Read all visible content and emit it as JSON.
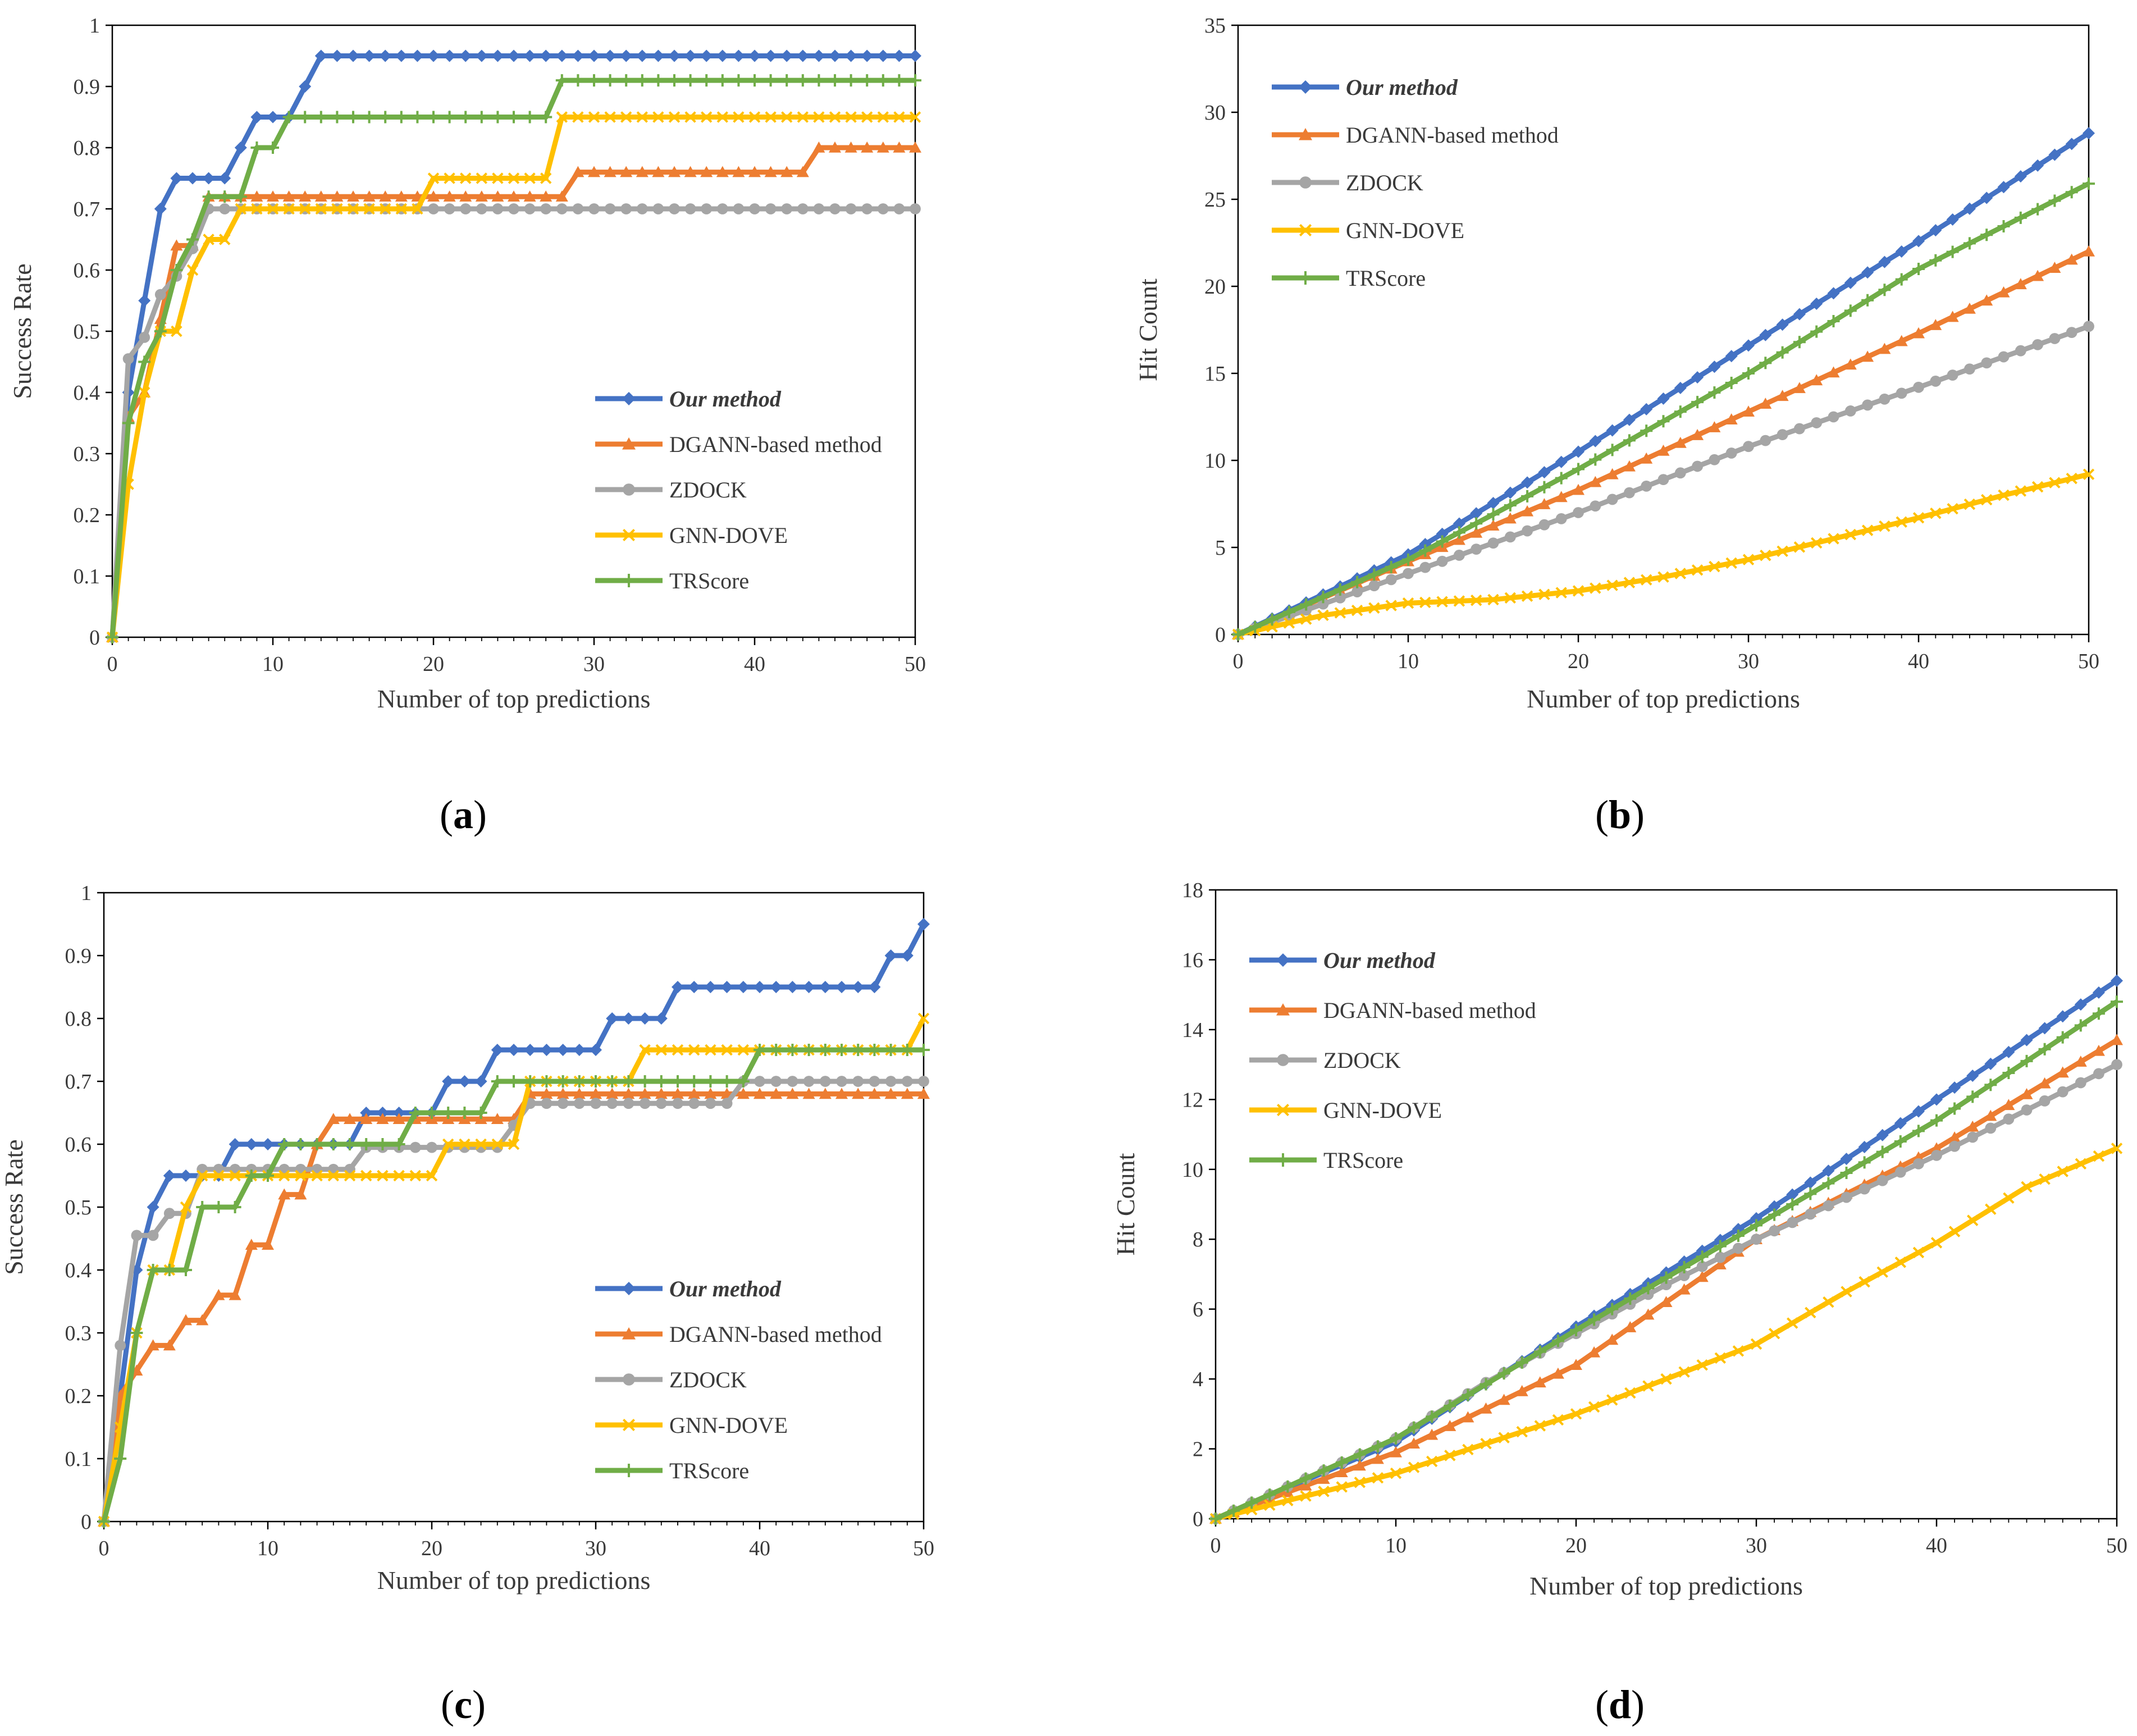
{
  "figure": {
    "captions": [
      "(a)",
      "(b)",
      "(c)",
      "(d)"
    ]
  },
  "series_styles": {
    "Our method": {
      "color": "#4472C4",
      "marker": "diamond"
    },
    "DGANN-based method": {
      "color": "#ED7D31",
      "marker": "triangle"
    },
    "ZDOCK": {
      "color": "#A5A5A5",
      "marker": "circle"
    },
    "GNN-DOVE": {
      "color": "#FFC000",
      "marker": "cross"
    },
    "TRScore": {
      "color": "#70AD47",
      "marker": "plus"
    }
  },
  "chart_data": [
    {
      "id": "a",
      "type": "line",
      "caption_letter": "a",
      "xlabel": "Number of top predictions",
      "ylabel": "Success Rate",
      "xlim": [
        0,
        50
      ],
      "ylim": [
        0,
        1
      ],
      "xticks": [
        0,
        10,
        20,
        30,
        40,
        50
      ],
      "yticks": [
        0,
        0.1,
        0.2,
        0.3,
        0.4,
        0.5,
        0.6,
        0.7,
        0.8,
        0.9,
        1
      ],
      "ytick_labels": [
        "0",
        "0.1",
        "0.2",
        "0.3",
        "0.4",
        "0.5",
        "0.6",
        "0.7",
        "0.8",
        "0.9",
        "1"
      ],
      "legend": [
        "Our method",
        "DGANN-based method",
        "ZDOCK",
        "GNN-DOVE",
        "TRScore"
      ],
      "series": [
        {
          "name": "Our method",
          "type": "step",
          "points": [
            [
              0,
              0
            ],
            [
              1,
              0.4
            ],
            [
              2,
              0.55
            ],
            [
              3,
              0.7
            ],
            [
              4,
              0.75
            ],
            [
              7,
              0.75
            ],
            [
              8,
              0.8
            ],
            [
              9,
              0.85
            ],
            [
              11,
              0.85
            ],
            [
              12,
              0.9
            ],
            [
              13,
              0.95
            ],
            [
              50,
              0.95
            ]
          ]
        },
        {
          "name": "DGANN-based method",
          "type": "step",
          "points": [
            [
              0,
              0
            ],
            [
              1,
              0.36
            ],
            [
              2,
              0.4
            ],
            [
              3,
              0.52
            ],
            [
              4,
              0.64
            ],
            [
              5,
              0.64
            ],
            [
              6,
              0.72
            ],
            [
              29,
              0.76
            ],
            [
              44,
              0.8
            ],
            [
              50,
              0.8
            ]
          ]
        },
        {
          "name": "ZDOCK",
          "type": "step",
          "points": [
            [
              0,
              0
            ],
            [
              1,
              0.455
            ],
            [
              2,
              0.49
            ],
            [
              3,
              0.56
            ],
            [
              4,
              0.59
            ],
            [
              5,
              0.635
            ],
            [
              6,
              0.7
            ],
            [
              50,
              0.7
            ]
          ]
        },
        {
          "name": "GNN-DOVE",
          "type": "step",
          "points": [
            [
              0,
              0
            ],
            [
              1,
              0.25
            ],
            [
              2,
              0.4
            ],
            [
              3,
              0.5
            ],
            [
              4,
              0.5
            ],
            [
              5,
              0.6
            ],
            [
              6,
              0.65
            ],
            [
              7,
              0.65
            ],
            [
              8,
              0.7
            ],
            [
              20,
              0.75
            ],
            [
              28,
              0.85
            ],
            [
              50,
              0.85
            ]
          ]
        },
        {
          "name": "TRScore",
          "type": "step",
          "points": [
            [
              0,
              0
            ],
            [
              1,
              0.35
            ],
            [
              2,
              0.45
            ],
            [
              3,
              0.5
            ],
            [
              4,
              0.6
            ],
            [
              5,
              0.65
            ],
            [
              6,
              0.72
            ],
            [
              8,
              0.72
            ],
            [
              9,
              0.8
            ],
            [
              10,
              0.8
            ],
            [
              11,
              0.85
            ],
            [
              28,
              0.91
            ],
            [
              50,
              0.91
            ]
          ]
        }
      ]
    },
    {
      "id": "b",
      "type": "line",
      "caption_letter": "b",
      "xlabel": "Number of top predictions",
      "ylabel": "Hit Count",
      "xlim": [
        0,
        50
      ],
      "ylim": [
        0,
        35
      ],
      "xticks": [
        0,
        10,
        20,
        30,
        40,
        50
      ],
      "yticks": [
        0,
        5,
        10,
        15,
        20,
        25,
        30,
        35
      ],
      "ytick_labels": [
        "0",
        "5",
        "10",
        "15",
        "20",
        "25",
        "30",
        "35"
      ],
      "legend": [
        "Our method",
        "DGANN-based method",
        "ZDOCK",
        "GNN-DOVE",
        "TRScore"
      ],
      "series": [
        {
          "name": "Our method",
          "type": "curve",
          "points": [
            [
              0,
              0
            ],
            [
              10,
              4.6
            ],
            [
              20,
              10.5
            ],
            [
              30,
              16.6
            ],
            [
              40,
              22.6
            ],
            [
              50,
              28.8
            ]
          ]
        },
        {
          "name": "DGANN-based method",
          "type": "curve",
          "points": [
            [
              0,
              0
            ],
            [
              10,
              4.2
            ],
            [
              20,
              8.3
            ],
            [
              30,
              12.8
            ],
            [
              40,
              17.3
            ],
            [
              50,
              22
            ]
          ]
        },
        {
          "name": "ZDOCK",
          "type": "curve",
          "points": [
            [
              0,
              0
            ],
            [
              10,
              3.5
            ],
            [
              20,
              7.0
            ],
            [
              30,
              10.8
            ],
            [
              40,
              14.2
            ],
            [
              50,
              17.7
            ]
          ]
        },
        {
          "name": "GNN-DOVE",
          "type": "curve",
          "points": [
            [
              0,
              0
            ],
            [
              5,
              1.1
            ],
            [
              10,
              1.8
            ],
            [
              15,
              2.0
            ],
            [
              20,
              2.5
            ],
            [
              25,
              3.3
            ],
            [
              30,
              4.3
            ],
            [
              35,
              5.5
            ],
            [
              40,
              6.7
            ],
            [
              45,
              8.0
            ],
            [
              50,
              9.2
            ]
          ]
        },
        {
          "name": "TRScore",
          "type": "curve",
          "points": [
            [
              0,
              0
            ],
            [
              10,
              4.3
            ],
            [
              20,
              9.5
            ],
            [
              30,
              15.0
            ],
            [
              40,
              21.0
            ],
            [
              50,
              25.9
            ]
          ]
        }
      ]
    },
    {
      "id": "c",
      "type": "line",
      "caption_letter": "c",
      "xlabel": "Number of top predictions",
      "ylabel": "Success Rate",
      "xlim": [
        0,
        50
      ],
      "ylim": [
        0,
        1
      ],
      "xticks": [
        0,
        10,
        20,
        30,
        40,
        50
      ],
      "yticks": [
        0,
        0.1,
        0.2,
        0.3,
        0.4,
        0.5,
        0.6,
        0.7,
        0.8,
        0.9,
        1
      ],
      "ytick_labels": [
        "0",
        "0.1",
        "0.2",
        "0.3",
        "0.4",
        "0.5",
        "0.6",
        "0.7",
        "0.8",
        "0.9",
        "1"
      ],
      "legend": [
        "Our method",
        "DGANN-based method",
        "ZDOCK",
        "GNN-DOVE",
        "TRScore"
      ],
      "series": [
        {
          "name": "Our method",
          "type": "step",
          "points": [
            [
              0,
              0
            ],
            [
              1,
              0.2
            ],
            [
              2,
              0.4
            ],
            [
              3,
              0.5
            ],
            [
              4,
              0.55
            ],
            [
              7,
              0.55
            ],
            [
              8,
              0.6
            ],
            [
              15,
              0.6
            ],
            [
              16,
              0.65
            ],
            [
              20,
              0.65
            ],
            [
              21,
              0.7
            ],
            [
              23,
              0.7
            ],
            [
              24,
              0.75
            ],
            [
              30,
              0.75
            ],
            [
              31,
              0.8
            ],
            [
              34,
              0.8
            ],
            [
              35,
              0.85
            ],
            [
              47,
              0.85
            ],
            [
              48,
              0.9
            ],
            [
              49,
              0.9
            ],
            [
              50,
              0.95
            ]
          ]
        },
        {
          "name": "DGANN-based method",
          "type": "step",
          "points": [
            [
              0,
              0
            ],
            [
              1,
              0.2
            ],
            [
              2,
              0.24
            ],
            [
              3,
              0.28
            ],
            [
              4,
              0.28
            ],
            [
              5,
              0.32
            ],
            [
              6,
              0.32
            ],
            [
              7,
              0.36
            ],
            [
              8,
              0.36
            ],
            [
              9,
              0.44
            ],
            [
              10,
              0.44
            ],
            [
              11,
              0.52
            ],
            [
              12,
              0.52
            ],
            [
              13,
              0.6
            ],
            [
              14,
              0.64
            ],
            [
              25,
              0.64
            ],
            [
              26,
              0.68
            ],
            [
              50,
              0.68
            ]
          ]
        },
        {
          "name": "ZDOCK",
          "type": "step",
          "points": [
            [
              0,
              0
            ],
            [
              1,
              0.28
            ],
            [
              2,
              0.455
            ],
            [
              3,
              0.455
            ],
            [
              4,
              0.49
            ],
            [
              5,
              0.49
            ],
            [
              6,
              0.56
            ],
            [
              15,
              0.56
            ],
            [
              16,
              0.595
            ],
            [
              24,
              0.595
            ],
            [
              25,
              0.63
            ],
            [
              26,
              0.665
            ],
            [
              38,
              0.665
            ],
            [
              39,
              0.7
            ],
            [
              50,
              0.7
            ]
          ]
        },
        {
          "name": "GNN-DOVE",
          "type": "step",
          "points": [
            [
              0,
              0
            ],
            [
              1,
              0.15
            ],
            [
              2,
              0.3
            ],
            [
              3,
              0.4
            ],
            [
              4,
              0.4
            ],
            [
              5,
              0.5
            ],
            [
              6,
              0.55
            ],
            [
              20,
              0.55
            ],
            [
              21,
              0.6
            ],
            [
              25,
              0.6
            ],
            [
              26,
              0.7
            ],
            [
              32,
              0.7
            ],
            [
              33,
              0.75
            ],
            [
              49,
              0.75
            ],
            [
              50,
              0.8
            ]
          ]
        },
        {
          "name": "TRScore",
          "type": "step",
          "points": [
            [
              0,
              0
            ],
            [
              1,
              0.1
            ],
            [
              2,
              0.3
            ],
            [
              3,
              0.4
            ],
            [
              5,
              0.4
            ],
            [
              6,
              0.5
            ],
            [
              8,
              0.5
            ],
            [
              9,
              0.55
            ],
            [
              10,
              0.55
            ],
            [
              11,
              0.6
            ],
            [
              18,
              0.6
            ],
            [
              19,
              0.65
            ],
            [
              22,
              0.65
            ],
            [
              24,
              0.7
            ],
            [
              39,
              0.7
            ],
            [
              40,
              0.75
            ],
            [
              50,
              0.75
            ]
          ]
        }
      ]
    },
    {
      "id": "d",
      "type": "line",
      "caption_letter": "d",
      "xlabel": "Number of top predictions",
      "ylabel": "Hit Count",
      "xlim": [
        0,
        50
      ],
      "ylim": [
        0,
        18
      ],
      "xticks": [
        0,
        10,
        20,
        30,
        40,
        50
      ],
      "yticks": [
        0,
        2,
        4,
        6,
        8,
        10,
        12,
        14,
        16,
        18
      ],
      "ytick_labels": [
        "0",
        "2",
        "4",
        "6",
        "8",
        "10",
        "12",
        "14",
        "16",
        "18"
      ],
      "legend": [
        "Our method",
        "DGANN-based method",
        "ZDOCK",
        "GNN-DOVE",
        "TRScore"
      ],
      "series": [
        {
          "name": "Our method",
          "type": "curve",
          "points": [
            [
              0,
              0
            ],
            [
              10,
              2.2
            ],
            [
              20,
              5.5
            ],
            [
              30,
              8.6
            ],
            [
              40,
              12.0
            ],
            [
              50,
              15.4
            ]
          ]
        },
        {
          "name": "DGANN-based method",
          "type": "curve",
          "points": [
            [
              0,
              0
            ],
            [
              10,
              1.9
            ],
            [
              20,
              4.4
            ],
            [
              30,
              8.0
            ],
            [
              40,
              10.6
            ],
            [
              50,
              13.7
            ]
          ]
        },
        {
          "name": "ZDOCK",
          "type": "curve",
          "points": [
            [
              0,
              0
            ],
            [
              10,
              2.3
            ],
            [
              15,
              3.9
            ],
            [
              20,
              5.3
            ],
            [
              25,
              6.7
            ],
            [
              30,
              8.0
            ],
            [
              40,
              10.4
            ],
            [
              50,
              13.0
            ]
          ]
        },
        {
          "name": "GNN-DOVE",
          "type": "curve",
          "points": [
            [
              0,
              0
            ],
            [
              10,
              1.3
            ],
            [
              20,
              3.0
            ],
            [
              25,
              4.0
            ],
            [
              30,
              5.0
            ],
            [
              35,
              6.5
            ],
            [
              40,
              7.9
            ],
            [
              45,
              9.5
            ],
            [
              50,
              10.6
            ]
          ]
        },
        {
          "name": "TRScore",
          "type": "curve",
          "points": [
            [
              0,
              0
            ],
            [
              10,
              2.3
            ],
            [
              20,
              5.4
            ],
            [
              30,
              8.4
            ],
            [
              40,
              11.4
            ],
            [
              50,
              14.8
            ]
          ]
        }
      ]
    }
  ]
}
